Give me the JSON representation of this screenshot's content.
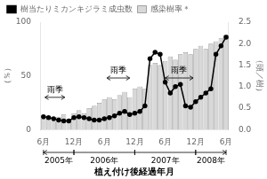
{
  "chart_data": {
    "type": "bar",
    "xlabel": "植え付け後経過年月",
    "ylabel": "（％）",
    "y2label": "（頭／樹）",
    "categories": [
      "6月",
      null,
      null,
      null,
      null,
      null,
      "12月",
      null,
      null,
      null,
      null,
      null,
      "6月",
      null,
      null,
      null,
      null,
      null,
      "12月",
      null,
      null,
      null,
      null,
      null,
      "6月",
      null,
      null,
      null,
      null,
      null,
      "12月",
      null,
      null,
      null,
      null,
      null,
      "6月"
    ],
    "series": [
      {
        "name": "感染樹率＊",
        "type": "bar",
        "color": "#d8d8d8",
        "values": [
          10,
          10,
          8,
          12,
          14,
          10,
          15,
          18,
          15,
          20,
          22,
          25,
          28,
          30,
          28,
          32,
          35,
          30,
          38,
          40,
          38,
          60,
          62,
          60,
          64,
          68,
          65,
          70,
          72,
          70,
          75,
          78,
          75,
          80,
          82,
          85,
          88
        ]
      },
      {
        "name": "樹当たりミカンキジラミ成虫数",
        "type": "line",
        "color": "#000000",
        "marker": "o",
        "axis": "y2",
        "values": [
          0.3,
          0.28,
          0.25,
          0.22,
          0.2,
          0.2,
          0.28,
          0.3,
          0.28,
          0.25,
          0.22,
          0.22,
          0.25,
          0.28,
          0.32,
          0.38,
          0.42,
          0.35,
          0.38,
          0.42,
          0.55,
          1.65,
          1.8,
          1.75,
          1.1,
          0.85,
          1.0,
          1.05,
          0.55,
          0.52,
          0.65,
          0.75,
          0.85,
          0.95,
          1.75,
          1.95,
          2.15
        ]
      }
    ],
    "ylim": [
      0,
      100
    ],
    "yticks": [
      0,
      50,
      100
    ],
    "y2lim": [
      0,
      2.5
    ],
    "y2ticks": [
      {
        "value": 0,
        "label": "0.0"
      },
      0.5,
      {
        "value": 1,
        "label": "1.0"
      },
      1.5,
      {
        "value": 2,
        "label": "2.0"
      },
      2.5
    ],
    "grid": false,
    "legend": "upper left",
    "annotations": [
      {
        "text": "雨季",
        "x": 2.25,
        "y": 33,
        "arrow_x": [
          0.3,
          4.2
        ],
        "arrow_y": 30
      },
      {
        "text": "雨季",
        "x": 14.75,
        "y": 51,
        "arrow_x": [
          12.5,
          17.0
        ],
        "arrow_y": 48
      },
      {
        "text": "雨季",
        "x": 26.75,
        "y": 51,
        "arrow_x": [
          24.0,
          29.5
        ],
        "arrow_y": 48
      },
      {
        "text": "2005年",
        "x": 3,
        "x_range": [
          0,
          6
        ]
      },
      {
        "text": "2006年",
        "x": 12,
        "x_range": [
          6,
          18
        ]
      },
      {
        "text": "2007年",
        "x": 24,
        "x_range": [
          18,
          30
        ]
      },
      {
        "text": "2008年",
        "x": 33,
        "x_range": [
          30,
          36
        ]
      }
    ]
  }
}
